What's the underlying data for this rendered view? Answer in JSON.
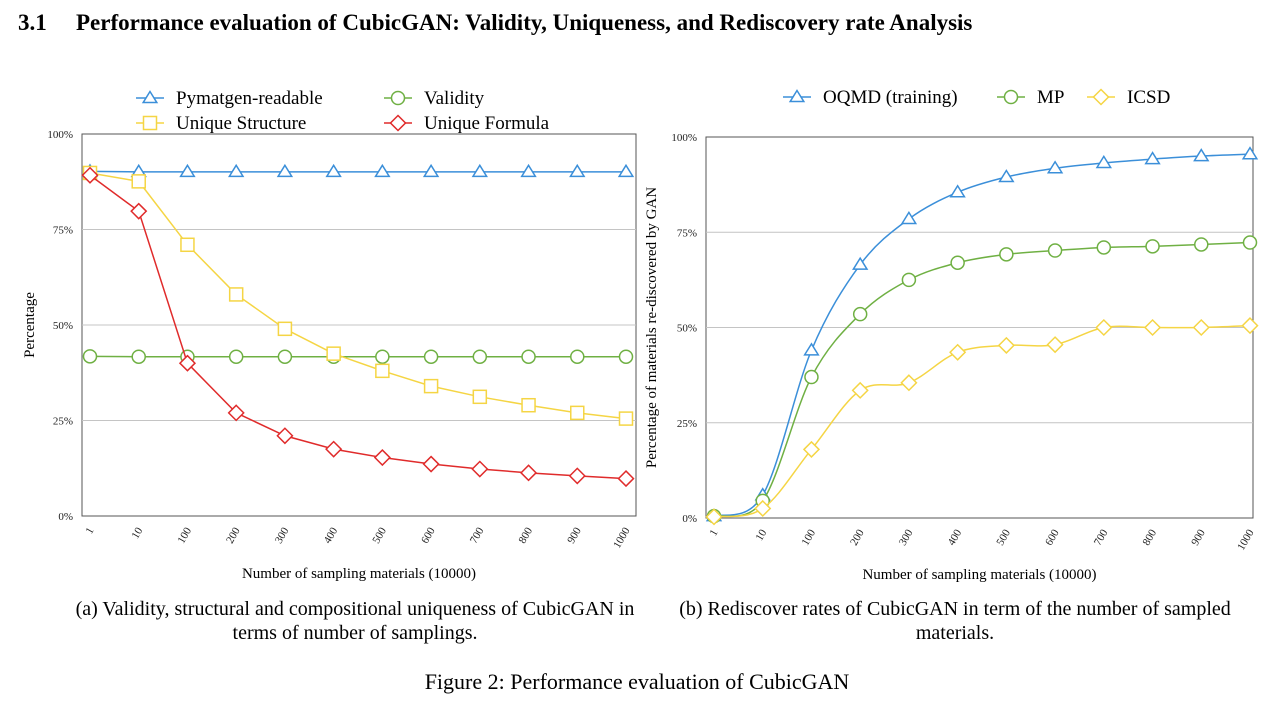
{
  "section": {
    "number": "3.1",
    "title": "Performance evaluation of CubicGAN: Validity, Uniqueness, and Rediscovery rate Analysis"
  },
  "figure_caption": "Figure 2: Performance evaluation of CubicGAN",
  "captions": {
    "a": "(a) Validity, structural and compositional uniqueness of CubicGAN in terms of number of samplings.",
    "b": "(b) Rediscover rates of CubicGAN in term of the number of sampled materials."
  },
  "colors": {
    "blue": "#3b8fd9",
    "green": "#6fb043",
    "yellow": "#f5d544",
    "red": "#e02b2b",
    "grid": "#c4c4c4"
  },
  "chart_data": [
    {
      "type": "line",
      "title": "",
      "xlabel": "Number of sampling materials (10000)",
      "ylabel": "Percentage",
      "categories": [
        "1",
        "10",
        "100",
        "200",
        "300",
        "400",
        "500",
        "600",
        "700",
        "800",
        "900",
        "1000"
      ],
      "yticks": [
        "0%",
        "25%",
        "50%",
        "75%",
        "100%"
      ],
      "ylim": [
        0,
        100
      ],
      "grid": "horizontal",
      "legend": "top",
      "series": [
        {
          "name": "Pymatgen-readable",
          "marker": "triangle",
          "color": "#3b8fd9",
          "values": [
            90.2,
            90.1,
            90.1,
            90.1,
            90.1,
            90.1,
            90.1,
            90.1,
            90.1,
            90.1,
            90.1,
            90.1
          ]
        },
        {
          "name": "Validity",
          "marker": "circle",
          "color": "#6fb043",
          "values": [
            41.8,
            41.7,
            41.7,
            41.7,
            41.7,
            41.7,
            41.7,
            41.7,
            41.7,
            41.7,
            41.7,
            41.7
          ]
        },
        {
          "name": "Unique Structure",
          "marker": "square",
          "color": "#f5d544",
          "values": [
            89.8,
            87.6,
            71.0,
            58.0,
            49.0,
            42.5,
            38.0,
            34.0,
            31.2,
            29.0,
            27.0,
            25.5
          ]
        },
        {
          "name": "Unique  Formula",
          "marker": "diamond",
          "color": "#e02b2b",
          "values": [
            89.2,
            79.8,
            40.0,
            27.0,
            21.0,
            17.5,
            15.3,
            13.6,
            12.3,
            11.3,
            10.5,
            9.8
          ]
        }
      ]
    },
    {
      "type": "line",
      "title": "",
      "xlabel": "Number of sampling materials (10000)",
      "ylabel": "Percentage of materials re-discovered by GAN",
      "categories": [
        "1",
        "10",
        "100",
        "200",
        "300",
        "400",
        "500",
        "600",
        "700",
        "800",
        "900",
        "1000"
      ],
      "yticks": [
        "0%",
        "25%",
        "50%",
        "75%",
        "100%"
      ],
      "ylim": [
        0,
        100
      ],
      "grid": "horizontal",
      "legend": "top",
      "series": [
        {
          "name": "OQMD (training)",
          "marker": "triangle",
          "color": "#3b8fd9",
          "values": [
            0.5,
            6.0,
            44.0,
            66.5,
            78.5,
            85.5,
            89.5,
            91.8,
            93.2,
            94.2,
            95.0,
            95.5
          ]
        },
        {
          "name": "MP",
          "marker": "circle",
          "color": "#6fb043",
          "values": [
            0.5,
            4.5,
            37.0,
            53.5,
            62.5,
            67.0,
            69.2,
            70.2,
            71.0,
            71.3,
            71.8,
            72.3
          ]
        },
        {
          "name": "ICSD",
          "marker": "diamond",
          "color": "#f5d544",
          "values": [
            0.3,
            2.5,
            18.0,
            33.5,
            35.5,
            43.5,
            45.3,
            45.5,
            50.0,
            50.0,
            50.0,
            50.5
          ]
        }
      ]
    }
  ]
}
